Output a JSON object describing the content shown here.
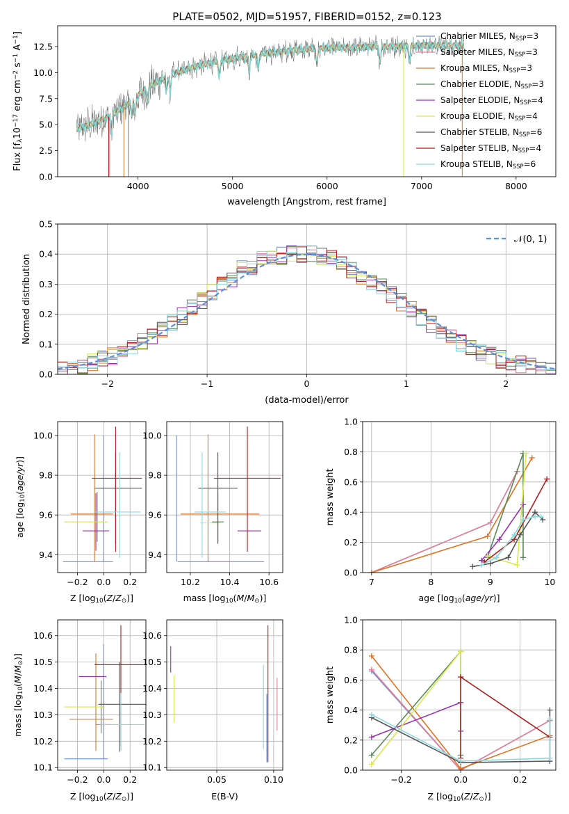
{
  "figure": {
    "title": "PLATE=0502, MJD=51957, FIBERID=0152, z=0.123"
  },
  "legend_entries": [
    {
      "label": "Chabrier MILES, N",
      "sub": "SSP",
      "tail": "=3",
      "color": "#6a8fde"
    },
    {
      "label": "Salpeter MILES, N",
      "sub": "SSP",
      "tail": "=3",
      "color": "#e87e93"
    },
    {
      "label": "Kroupa MILES, N",
      "sub": "SSP",
      "tail": "=3",
      "color": "#e07320"
    },
    {
      "label": "Chabrier ELODIE, N",
      "sub": "SSP",
      "tail": "=3",
      "color": "#5a8a5a"
    },
    {
      "label": "Salpeter ELODIE, N",
      "sub": "SSP",
      "tail": "=4",
      "color": "#9a2fb0"
    },
    {
      "label": "Kroupa ELODIE, N",
      "sub": "SSP",
      "tail": "=4",
      "color": "#d7e84a"
    },
    {
      "label": "Chabrier STELIB, N",
      "sub": "SSP",
      "tail": "=6",
      "color": "#555555"
    },
    {
      "label": "Salpeter STELIB, N",
      "sub": "SSP",
      "tail": "=4",
      "color": "#b01c1c"
    },
    {
      "label": "Kroupa STELIB, N",
      "sub": "SSP",
      "tail": "=6",
      "color": "#8ad8e0"
    }
  ],
  "chart_data": [
    {
      "id": "spectrum",
      "type": "line",
      "title": "PLATE=0502, MJD=51957, FIBERID=0152, z=0.123",
      "xlabel": "wavelength [Angstrom, rest frame]",
      "ylabel_parts": [
        "Flux [f",
        "λ",
        "10",
        "−17",
        " erg cm",
        "−2",
        " s",
        "−1",
        " A",
        "−1",
        "]"
      ],
      "xlim": [
        3150,
        8420
      ],
      "ylim": [
        0,
        14.5
      ],
      "xticks": [
        4000,
        5000,
        6000,
        7000,
        8000
      ],
      "yticks": [
        0.0,
        2.5,
        5.0,
        7.5,
        10.0,
        12.5
      ],
      "data_range_x": [
        3350,
        7450
      ],
      "continuum_knots_x": [
        3350,
        3500,
        3700,
        3900,
        4100,
        4300,
        4500,
        4700,
        4900,
        5100,
        5300,
        5500,
        5700,
        5900,
        6100,
        6300,
        6500,
        6700,
        6900,
        7100,
        7300,
        7450
      ],
      "continuum_knots_y": [
        4.6,
        5.0,
        5.8,
        7.0,
        8.6,
        9.6,
        10.3,
        10.8,
        11.2,
        11.5,
        11.8,
        12.0,
        12.2,
        12.3,
        12.4,
        12.4,
        12.5,
        12.5,
        12.6,
        12.6,
        12.6,
        12.6
      ],
      "observed_color": "#777777",
      "model_overlay_color": "#7fd6d8",
      "grid": false
    },
    {
      "id": "normed_distribution",
      "type": "histogram",
      "xlabel": "(data-model)/error",
      "ylabel": "Normed distribution",
      "xlim": [
        -2.5,
        2.5
      ],
      "ylim": [
        0,
        0.5
      ],
      "xticks": [
        -2,
        -1,
        0,
        1,
        2
      ],
      "yticks": [
        0.0,
        0.1,
        0.2,
        0.3,
        0.4,
        0.5
      ],
      "bin_edges_start": -2.5,
      "bin_width": 0.1,
      "reference_curve": {
        "name": "N(0,1)",
        "mu": 0,
        "sigma": 1,
        "color": "#5b8fd9",
        "style": "dashed"
      },
      "series_mean_heights": [
        0.018,
        0.022,
        0.03,
        0.04,
        0.05,
        0.062,
        0.075,
        0.09,
        0.11,
        0.13,
        0.15,
        0.17,
        0.195,
        0.22,
        0.245,
        0.27,
        0.3,
        0.32,
        0.35,
        0.36,
        0.38,
        0.39,
        0.395,
        0.4,
        0.4,
        0.4,
        0.395,
        0.385,
        0.37,
        0.35,
        0.33,
        0.31,
        0.29,
        0.265,
        0.24,
        0.215,
        0.19,
        0.165,
        0.145,
        0.125,
        0.105,
        0.09,
        0.075,
        0.06,
        0.05,
        0.04,
        0.032,
        0.026,
        0.02,
        0.016
      ],
      "grid": true,
      "legend_position": "top-right"
    },
    {
      "id": "age_vs_Z",
      "type": "errorbar",
      "xlabel": "Z [log10(Z/Z⊙)]",
      "ylabel": "age [log10(age/yr)]",
      "xlim": [
        -0.35,
        0.32
      ],
      "ylim": [
        9.31,
        10.07
      ],
      "xticks": [
        -0.2,
        0.0,
        0.2
      ],
      "xtick_labels": [
        "−0.2",
        "0.0",
        "0.2"
      ],
      "yticks": [
        9.4,
        9.6,
        9.8,
        10.0
      ],
      "points": [
        {
          "x": -0.09,
          "xerr": [
            0.22,
            0.16
          ],
          "y": 9.365,
          "yerr": [
            0.0,
            0.0
          ],
          "color": "#6a8fde"
        },
        {
          "x": 0.0,
          "xerr": [
            0.0,
            0.0
          ],
          "y": 9.365,
          "yerr": [
            0.0,
            0.635
          ],
          "color": "#6a8fde"
        },
        {
          "x": -0.09,
          "xerr": [
            0.0,
            0.0
          ],
          "y": 9.365,
          "yerr": [
            0.0,
            0.0
          ],
          "color": "#e87e93"
        },
        {
          "x": -0.07,
          "xerr": [
            0.18,
            0.14
          ],
          "y": 9.605,
          "yerr": [
            0.24,
            0.4
          ],
          "color": "#e07320"
        },
        {
          "x": -0.05,
          "xerr": [
            0.0,
            0.0
          ],
          "y": 9.565,
          "yerr": [
            0.1,
            0.15
          ],
          "color": "#5a8a5a"
        },
        {
          "x": -0.06,
          "xerr": [
            0.1,
            0.1
          ],
          "y": 9.52,
          "yerr": [
            0.1,
            0.19
          ],
          "color": "#9a2fb0"
        },
        {
          "x": -0.1,
          "xerr": [
            0.2,
            0.13
          ],
          "y": 9.565,
          "yerr": [
            0.0,
            0.0
          ],
          "color": "#d7e84a"
        },
        {
          "x": 0.09,
          "xerr": [
            0.16,
            0.2
          ],
          "y": 9.735,
          "yerr": [
            0.28,
            0.18
          ],
          "color": "#555555"
        },
        {
          "x": 0.09,
          "xerr": [
            0.18,
            0.2
          ],
          "y": 9.785,
          "yerr": [
            0.37,
            0.26
          ],
          "color": "#b01c1c"
        },
        {
          "x": 0.12,
          "xerr": [
            0.19,
            0.16
          ],
          "y": 9.615,
          "yerr": [
            0.23,
            0.3
          ],
          "color": "#8ad8e0"
        }
      ],
      "grid": true
    },
    {
      "id": "age_vs_mass",
      "type": "errorbar",
      "xlabel": "mass [log10(M/M⊙)]",
      "xlim": [
        10.08,
        10.67
      ],
      "ylim": [
        9.31,
        10.07
      ],
      "xticks": [
        10.2,
        10.4,
        10.6
      ],
      "yticks": [
        9.4,
        9.6,
        9.8,
        10.0
      ],
      "points": [
        {
          "x": 10.355,
          "xerr": [
            0.22,
            0.22
          ],
          "y": 9.365,
          "yerr": [
            0.0,
            0.0
          ],
          "color": "#6a8fde"
        },
        {
          "x": 10.13,
          "xerr": [
            0.0,
            0.0
          ],
          "y": 9.365,
          "yerr": [
            0.0,
            0.635
          ],
          "color": "#6a8fde"
        },
        {
          "x": 10.35,
          "xerr": [
            0.07,
            0.07
          ],
          "y": 9.365,
          "yerr": [
            0.0,
            0.0
          ],
          "color": "#e87e93"
        },
        {
          "x": 10.29,
          "xerr": [
            0.0,
            0.0
          ],
          "y": 9.605,
          "yerr": [
            0.24,
            0.4
          ],
          "color": "#e07320"
        },
        {
          "x": 10.35,
          "xerr": [
            0.2,
            0.2
          ],
          "y": 9.605,
          "yerr": [
            0.0,
            0.0
          ],
          "color": "#e07320"
        },
        {
          "x": 10.34,
          "xerr": [
            0.03,
            0.03
          ],
          "y": 9.565,
          "yerr": [
            0.1,
            0.15
          ],
          "color": "#5a8a5a"
        },
        {
          "x": 10.5,
          "xerr": [
            0.06,
            0.06
          ],
          "y": 9.52,
          "yerr": [
            0.0,
            0.0
          ],
          "color": "#9a2fb0"
        },
        {
          "x": 10.3,
          "xerr": [
            0.05,
            0.05
          ],
          "y": 9.56,
          "yerr": [
            0.0,
            0.0
          ],
          "color": "#d7e84a"
        },
        {
          "x": 10.34,
          "xerr": [
            0.1,
            0.1
          ],
          "y": 9.735,
          "yerr": [
            0.28,
            0.18
          ],
          "color": "#555555"
        },
        {
          "x": 10.49,
          "xerr": [
            0.17,
            0.17
          ],
          "y": 9.785,
          "yerr": [
            0.37,
            0.26
          ],
          "color": "#b01c1c"
        },
        {
          "x": 10.26,
          "xerr": [
            0.0,
            0.0
          ],
          "y": 9.615,
          "yerr": [
            0.23,
            0.3
          ],
          "color": "#8ad8e0"
        },
        {
          "x": 10.3,
          "xerr": [
            0.08,
            0.08
          ],
          "y": 9.615,
          "yerr": [
            0.0,
            0.0
          ],
          "color": "#8ad8e0"
        }
      ],
      "grid": true
    },
    {
      "id": "mass_weight_vs_age",
      "type": "line",
      "xlabel": "age [log10(age/yr)]",
      "ylabel": "mass weight",
      "xlim": [
        6.85,
        10.1
      ],
      "ylim": [
        0,
        1.0
      ],
      "xticks": [
        7,
        8,
        9,
        10
      ],
      "yticks": [
        0.0,
        0.2,
        0.4,
        0.6,
        0.8,
        1.0
      ],
      "series": [
        {
          "color": "#6a8fde",
          "x": [
            7.0,
            9.0,
            9.45
          ],
          "y": [
            0.0,
            0.33,
            0.67
          ]
        },
        {
          "color": "#e87e93",
          "x": [
            7.0,
            9.0,
            9.45
          ],
          "y": [
            0.0,
            0.33,
            0.67
          ]
        },
        {
          "color": "#e07320",
          "x": [
            7.0,
            8.95,
            9.7
          ],
          "y": [
            0.0,
            0.24,
            0.76
          ]
        },
        {
          "color": "#5a8a5a",
          "x": [
            8.95,
            9.55,
            9.55
          ],
          "y": [
            0.1,
            0.79,
            0.1
          ]
        },
        {
          "color": "#9a2fb0",
          "x": [
            8.85,
            9.15,
            9.55
          ],
          "y": [
            0.08,
            0.22,
            0.45
          ]
        },
        {
          "color": "#d7e84a",
          "x": [
            8.95,
            9.45,
            9.6
          ],
          "y": [
            0.11,
            0.05,
            0.79
          ]
        },
        {
          "color": "#555555",
          "x": [
            8.7,
            9.0,
            9.3,
            9.5,
            9.75,
            9.88
          ],
          "y": [
            0.04,
            0.06,
            0.1,
            0.25,
            0.4,
            0.35
          ]
        },
        {
          "color": "#b01c1c",
          "x": [
            8.9,
            9.4,
            9.95
          ],
          "y": [
            0.07,
            0.22,
            0.62
          ]
        },
        {
          "color": "#8ad8e0",
          "x": [
            8.85,
            9.1,
            9.4,
            9.55,
            9.75,
            9.85
          ],
          "y": [
            0.05,
            0.1,
            0.25,
            0.35,
            0.37,
            0.37
          ]
        }
      ],
      "grid": true
    },
    {
      "id": "mass_vs_Z",
      "type": "errorbar",
      "xlabel": "Z [log10(Z/Z⊙)]",
      "ylabel": "mass [log10(M/M⊙)]",
      "xlim": [
        -0.35,
        0.32
      ],
      "ylim": [
        10.09,
        10.66
      ],
      "xticks": [
        -0.2,
        0.0,
        0.2
      ],
      "xtick_labels": [
        "−0.2",
        "0.0",
        "0.2"
      ],
      "yticks": [
        10.1,
        10.2,
        10.3,
        10.4,
        10.5,
        10.6
      ],
      "points": [
        {
          "x": -0.13,
          "xerr": [
            0.17,
            0.16
          ],
          "y": 10.133,
          "yerr": [
            0.0,
            0.0
          ],
          "color": "#6a8fde"
        },
        {
          "x": 0.0,
          "xerr": [
            0.0,
            0.0
          ],
          "y": 10.133,
          "yerr": [
            0.0,
            0.435
          ],
          "color": "#6a8fde"
        },
        {
          "x": 0.0,
          "xerr": [
            0.06,
            0.06
          ],
          "y": 10.263,
          "yerr": [
            0.0,
            0.0
          ],
          "color": "#e87e93"
        },
        {
          "x": -0.06,
          "xerr": [
            0.2,
            0.13
          ],
          "y": 10.283,
          "yerr": [
            0.12,
            0.25
          ],
          "color": "#e07320"
        },
        {
          "x": -0.02,
          "xerr": [
            0.0,
            0.0
          ],
          "y": 10.33,
          "yerr": [
            0.1,
            0.1
          ],
          "color": "#5a8a5a"
        },
        {
          "x": -0.08,
          "xerr": [
            0.11,
            0.1
          ],
          "y": 10.445,
          "yerr": [
            0.0,
            0.0
          ],
          "color": "#9a2fb0"
        },
        {
          "x": -0.12,
          "xerr": [
            0.18,
            0.12
          ],
          "y": 10.33,
          "yerr": [
            0.0,
            0.0
          ],
          "color": "#d7e84a"
        },
        {
          "x": 0.12,
          "xerr": [
            0.16,
            0.2
          ],
          "y": 10.34,
          "yerr": [
            0.18,
            0.16
          ],
          "color": "#555555"
        },
        {
          "x": 0.13,
          "xerr": [
            0.2,
            0.17
          ],
          "y": 10.49,
          "yerr": [
            0.31,
            0.15
          ],
          "color": "#b01c1c"
        },
        {
          "x": 0.13,
          "xerr": [
            0.15,
            0.18
          ],
          "y": 10.263,
          "yerr": [
            0.1,
            0.12
          ],
          "color": "#8ad8e0"
        }
      ],
      "grid": true
    },
    {
      "id": "mass_vs_ebv",
      "type": "errorbar",
      "xlabel": "E(B-V)",
      "xlim": [
        0.006,
        0.108
      ],
      "ylim": [
        10.09,
        10.66
      ],
      "xticks": [
        0.05,
        0.1
      ],
      "xtick_labels": [
        "0.05",
        "0.10"
      ],
      "yticks": [
        10.1,
        10.2,
        10.3,
        10.4,
        10.5,
        10.6
      ],
      "points": [
        {
          "x": 0.0095,
          "xerr": [
            0.0,
            0.0
          ],
          "y": 10.51,
          "yerr": [
            0.05,
            0.05
          ],
          "color": "#9a2fb0"
        },
        {
          "x": 0.0125,
          "xerr": [
            0.0,
            0.0
          ],
          "y": 10.36,
          "yerr": [
            0.09,
            0.09
          ],
          "color": "#d7e84a"
        },
        {
          "x": 0.091,
          "xerr": [
            0.0,
            0.0
          ],
          "y": 10.33,
          "yerr": [
            0.16,
            0.16
          ],
          "color": "#8ad8e0"
        },
        {
          "x": 0.095,
          "xerr": [
            0.0,
            0.0
          ],
          "y": 10.38,
          "yerr": [
            0.26,
            0.26
          ],
          "color": "#b01c1c"
        },
        {
          "x": 0.094,
          "xerr": [
            0.0,
            0.0
          ],
          "y": 10.25,
          "yerr": [
            0.13,
            0.13
          ],
          "color": "#6a8fde"
        },
        {
          "x": 0.103,
          "xerr": [
            0.0,
            0.0
          ],
          "y": 10.34,
          "yerr": [
            0.1,
            0.1
          ],
          "color": "#e87e93"
        }
      ],
      "grid": true
    },
    {
      "id": "mass_weight_vs_Z",
      "type": "line",
      "xlabel": "Z [log10(Z/Z⊙)]",
      "ylabel": "mass weight",
      "xlim": [
        -0.33,
        0.32
      ],
      "ylim": [
        0,
        1.0
      ],
      "xticks": [
        -0.2,
        0.0,
        0.2
      ],
      "xtick_labels": [
        "−0.2",
        "0.0",
        "0.2"
      ],
      "yticks": [
        0.0,
        0.2,
        0.4,
        0.6,
        0.8,
        1.0
      ],
      "series": [
        {
          "color": "#6a8fde",
          "x": [
            -0.3,
            0.0,
            0.3
          ],
          "y": [
            0.66,
            0.0,
            0.33
          ]
        },
        {
          "color": "#e87e93",
          "x": [
            -0.3,
            0.0,
            0.3
          ],
          "y": [
            0.67,
            0.0,
            0.33
          ]
        },
        {
          "color": "#e07320",
          "x": [
            -0.3,
            0.0,
            0.3
          ],
          "y": [
            0.76,
            0.01,
            0.23
          ]
        },
        {
          "color": "#5a8a5a",
          "x": [
            -0.3,
            0.0,
            0.0
          ],
          "y": [
            0.1,
            0.79,
            0.1
          ]
        },
        {
          "color": "#9a2fb0",
          "x": [
            -0.3,
            0.0,
            0.0
          ],
          "y": [
            0.22,
            0.45,
            0.26
          ]
        },
        {
          "color": "#d7e84a",
          "x": [
            -0.3,
            0.0,
            0.0
          ],
          "y": [
            0.04,
            0.79,
            0.05
          ]
        },
        {
          "color": "#555555",
          "x": [
            -0.3,
            0.0,
            0.3,
            0.3
          ],
          "y": [
            0.35,
            0.05,
            0.06,
            0.4
          ]
        },
        {
          "color": "#b01c1c",
          "x": [
            0.0,
            0.0,
            0.3
          ],
          "y": [
            0.08,
            0.62,
            0.22
          ]
        },
        {
          "color": "#8ad8e0",
          "x": [
            -0.3,
            0.0,
            0.3,
            0.3
          ],
          "y": [
            0.37,
            0.06,
            0.08,
            0.34
          ]
        }
      ],
      "grid": true
    }
  ]
}
